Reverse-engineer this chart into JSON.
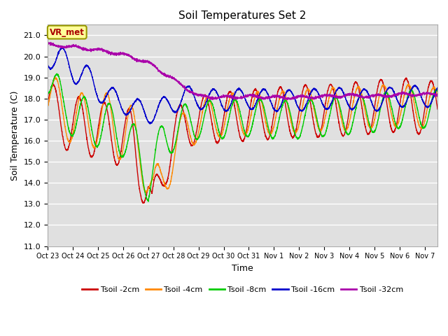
{
  "title": "Soil Temperatures Set 2",
  "xlabel": "Time",
  "ylabel": "Soil Temperature (C)",
  "ylim": [
    11.0,
    21.5
  ],
  "yticks": [
    11.0,
    12.0,
    13.0,
    14.0,
    15.0,
    16.0,
    17.0,
    18.0,
    19.0,
    20.0,
    21.0
  ],
  "bg_color": "#e0e0e0",
  "fig_color": "#ffffff",
  "grid_color": "#ffffff",
  "series_colors": {
    "Tsoil -2cm": "#cc0000",
    "Tsoil -4cm": "#ff8800",
    "Tsoil -8cm": "#00cc00",
    "Tsoil -16cm": "#0000cc",
    "Tsoil -32cm": "#aa00aa"
  },
  "annotation_text": "VR_met",
  "annotation_color": "#aa0000",
  "annotation_bg": "#ffff99",
  "annotation_border": "#999900",
  "tick_labels": [
    "Oct 23",
    "Oct 24",
    "Oct 25",
    "Oct 26",
    "Oct 27",
    "Oct 28",
    "Oct 29",
    "Oct 30",
    "Oct 31",
    "Nov 1",
    "Nov 2",
    "Nov 3",
    "Nov 4",
    "Nov 5",
    "Nov 6",
    "Nov 7"
  ],
  "tick_positions": [
    0,
    1,
    2,
    3,
    4,
    5,
    6,
    7,
    8,
    9,
    10,
    11,
    12,
    13,
    14,
    15
  ]
}
